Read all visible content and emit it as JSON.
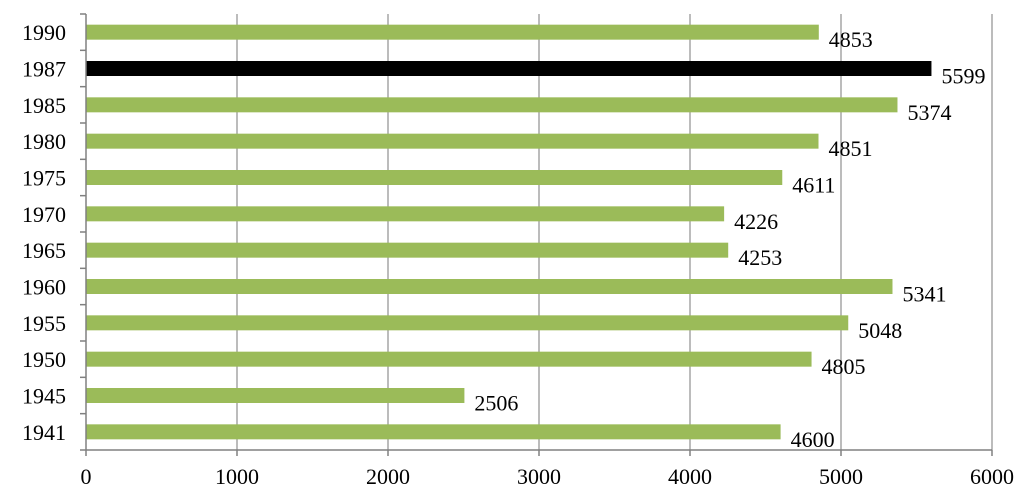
{
  "chart_data": {
    "type": "bar",
    "orientation": "horizontal",
    "title": "",
    "xlabel": "",
    "ylabel": "",
    "xlim": [
      0,
      6000
    ],
    "xticks": [
      0,
      1000,
      2000,
      3000,
      4000,
      5000,
      6000
    ],
    "grid": "vertical",
    "legend": "none",
    "categories": [
      "1990",
      "1987",
      "1985",
      "1980",
      "1975",
      "1970",
      "1965",
      "1960",
      "1955",
      "1950",
      "1945",
      "1941"
    ],
    "values": [
      4853,
      5599,
      5374,
      4851,
      4611,
      4226,
      4253,
      5341,
      5048,
      4805,
      2506,
      4600
    ],
    "colors": {
      "default_bar": "#9BBB59",
      "highlight_bar": "#000000",
      "gridline": "#A6A6A6",
      "axis": "#808080"
    },
    "highlight_category": "1987"
  }
}
